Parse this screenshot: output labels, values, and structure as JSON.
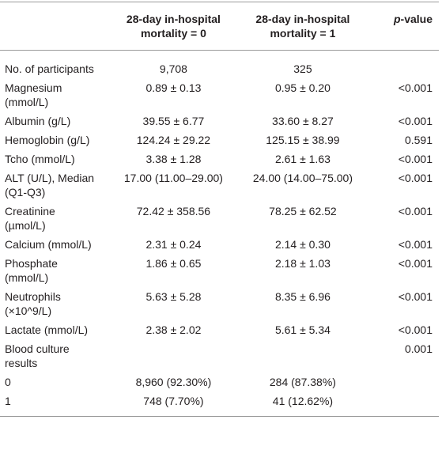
{
  "table": {
    "header": [
      [
        "28-day in-hospital",
        "mortality = 0"
      ],
      [
        "28-day in-hospital",
        "mortality = 1"
      ],
      {
        "italic": "p",
        "text": "-value"
      }
    ],
    "rows": [
      {
        "label": [
          "No. of participants"
        ],
        "m0": "9,708",
        "m1": "325"
      },
      {
        "label": [
          "Magnesium",
          "(mmol/L)"
        ],
        "m0": "0.89 ± 0.13",
        "m1": "0.95 ± 0.20",
        "p": "<0.001"
      },
      {
        "label": [
          "Albumin (g/L)"
        ],
        "m0": "39.55 ± 6.77",
        "m1": "33.60 ± 8.27",
        "p": "<0.001"
      },
      {
        "label": [
          "Hemoglobin (g/L)"
        ],
        "m0": "124.24 ± 29.22",
        "m1": "125.15 ± 38.99",
        "p": "0.591"
      },
      {
        "label": [
          "Tcho (mmol/L)"
        ],
        "m0": "3.38 ± 1.28",
        "m1": "2.61 ± 1.63",
        "p": "<0.001"
      },
      {
        "label": [
          "ALT (U/L), Median",
          "(Q1-Q3)"
        ],
        "m0": "17.00 (11.00–29.00)",
        "m1": "24.00 (14.00–75.00)",
        "p": "<0.001"
      },
      {
        "label": [
          "Creatinine",
          "(µmol/L)"
        ],
        "m0": "72.42 ± 358.56",
        "m1": "78.25 ± 62.52",
        "p": "<0.001"
      },
      {
        "label": [
          "Calcium (mmol/L)"
        ],
        "m0": "2.31 ± 0.24",
        "m1": "2.14 ± 0.30",
        "p": "<0.001"
      },
      {
        "label": [
          "Phosphate",
          "(mmol/L)"
        ],
        "m0": "1.86 ± 0.65",
        "m1": "2.18 ± 1.03",
        "p": "<0.001"
      },
      {
        "label": [
          "Neutrophils",
          "(×10^9/L)"
        ],
        "m0": "5.63 ± 5.28",
        "m1": "8.35 ± 6.96",
        "p": "<0.001"
      },
      {
        "label": [
          "Lactate (mmol/L)"
        ],
        "m0": "2.38 ± 2.02",
        "m1": "5.61 ± 5.34",
        "p": "<0.001"
      },
      {
        "label": [
          "Blood culture",
          "results"
        ],
        "p": "0.001"
      },
      {
        "label": [
          "0"
        ],
        "m0": "8,960 (92.30%)",
        "m1": "284 (87.38%)"
      },
      {
        "label": [
          "1"
        ],
        "m0": "748 (7.70%)",
        "m1": "41 (12.62%)"
      }
    ]
  }
}
